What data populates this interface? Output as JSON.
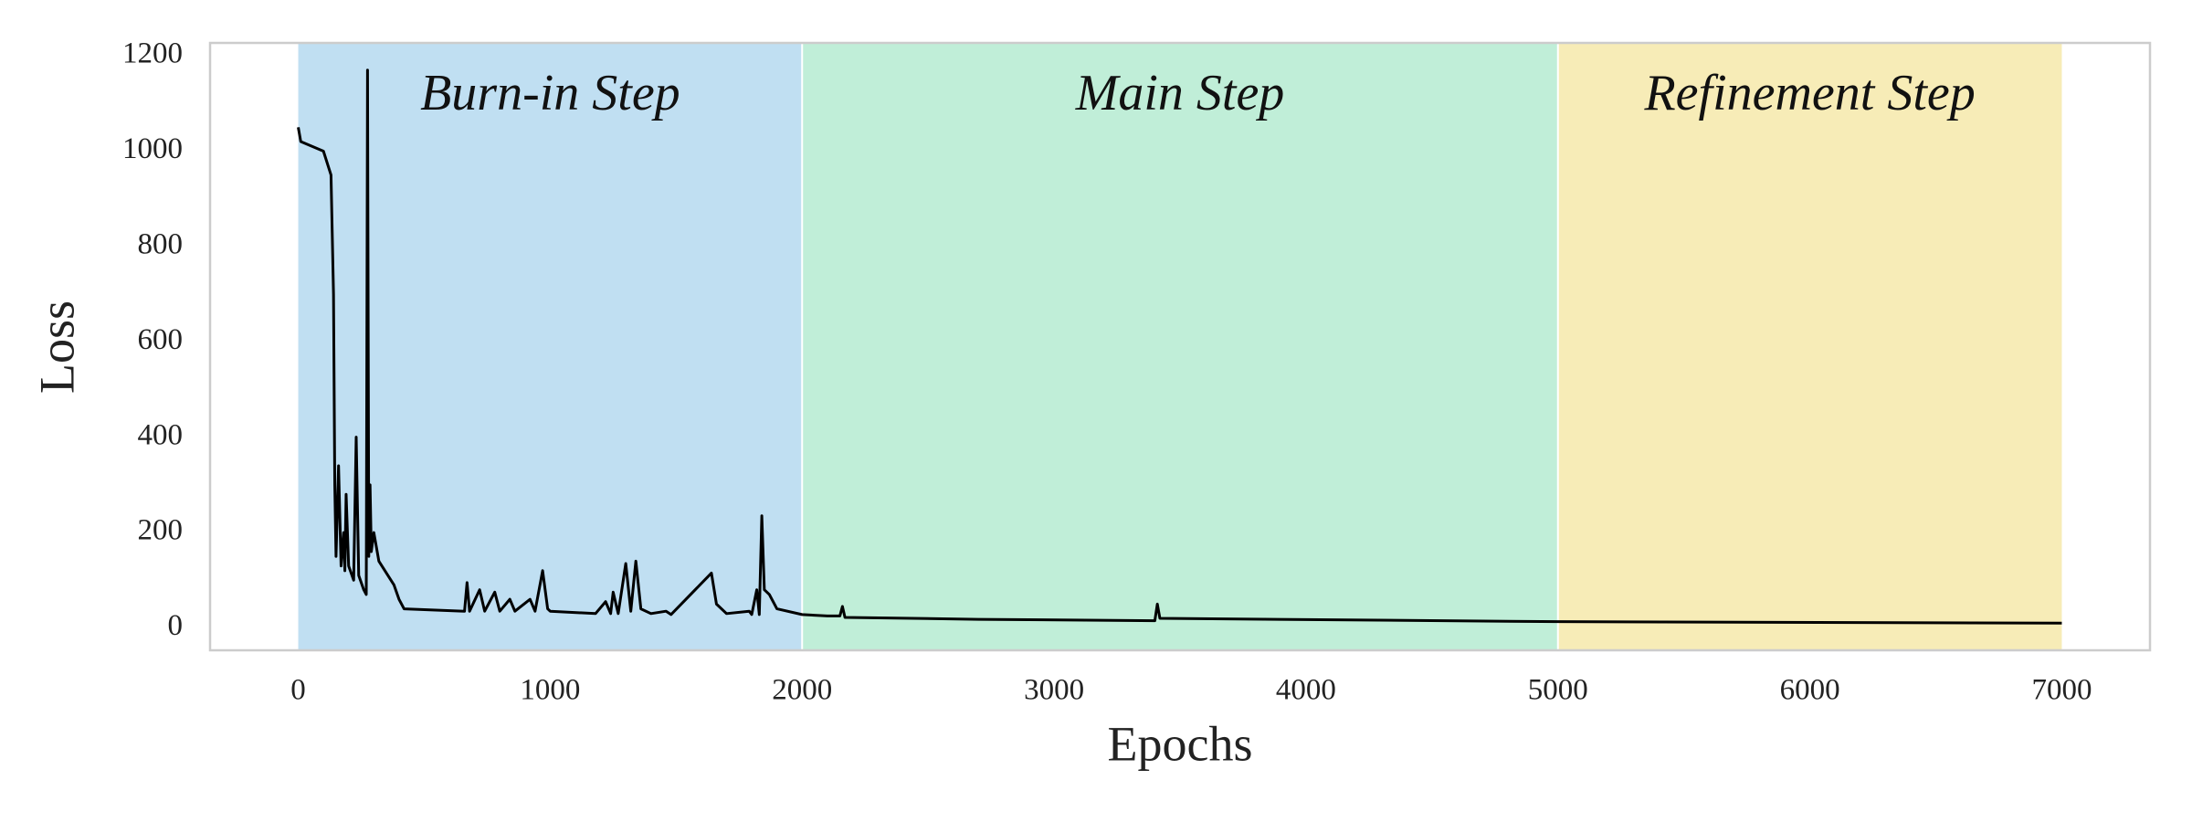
{
  "chart_data": {
    "type": "line",
    "xlabel": "Epochs",
    "ylabel": "Loss",
    "xlim": [
      -350,
      7350
    ],
    "ylim": [
      -47,
      1227
    ],
    "xticks": [
      0,
      1000,
      2000,
      3000,
      4000,
      5000,
      6000,
      7000
    ],
    "yticks": [
      0,
      200,
      400,
      600,
      800,
      1000,
      1200
    ],
    "grid": false,
    "regions": [
      {
        "label": "Burn-in Step",
        "start": 0,
        "end": 2000,
        "color": "#c0dff2"
      },
      {
        "label": "Main Step",
        "start": 2000,
        "end": 5000,
        "color": "#c0eed8"
      },
      {
        "label": "Refinement Step",
        "start": 5000,
        "end": 7000,
        "color": "#f7ecb7"
      }
    ],
    "series": [
      {
        "color": "#000000",
        "x": [
          0,
          10,
          100,
          130,
          140,
          145,
          150,
          160,
          170,
          180,
          185,
          190,
          200,
          220,
          230,
          240,
          260,
          270,
          275,
          280,
          285,
          290,
          300,
          320,
          380,
          400,
          420,
          660,
          670,
          680,
          720,
          740,
          780,
          800,
          840,
          860,
          920,
          940,
          970,
          990,
          1000,
          1180,
          1220,
          1240,
          1250,
          1270,
          1300,
          1320,
          1340,
          1360,
          1400,
          1460,
          1480,
          1640,
          1660,
          1700,
          1790,
          1800,
          1820,
          1830,
          1840,
          1850,
          1870,
          1900,
          2000,
          2100,
          2150,
          2160,
          2170,
          2700,
          3400,
          3410,
          3420,
          5000,
          7000
        ],
        "values": [
          1050,
          1020,
          1000,
          950,
          700,
          300,
          150,
          340,
          130,
          200,
          120,
          280,
          130,
          100,
          400,
          110,
          80,
          70,
          1170,
          150,
          300,
          160,
          200,
          140,
          90,
          60,
          40,
          35,
          95,
          35,
          80,
          35,
          75,
          35,
          60,
          35,
          60,
          35,
          120,
          40,
          35,
          30,
          55,
          30,
          75,
          30,
          135,
          35,
          140,
          40,
          30,
          35,
          28,
          115,
          50,
          30,
          35,
          28,
          80,
          28,
          235,
          80,
          70,
          40,
          28,
          25,
          25,
          45,
          22,
          18,
          15,
          50,
          20,
          13,
          10
        ]
      }
    ]
  }
}
